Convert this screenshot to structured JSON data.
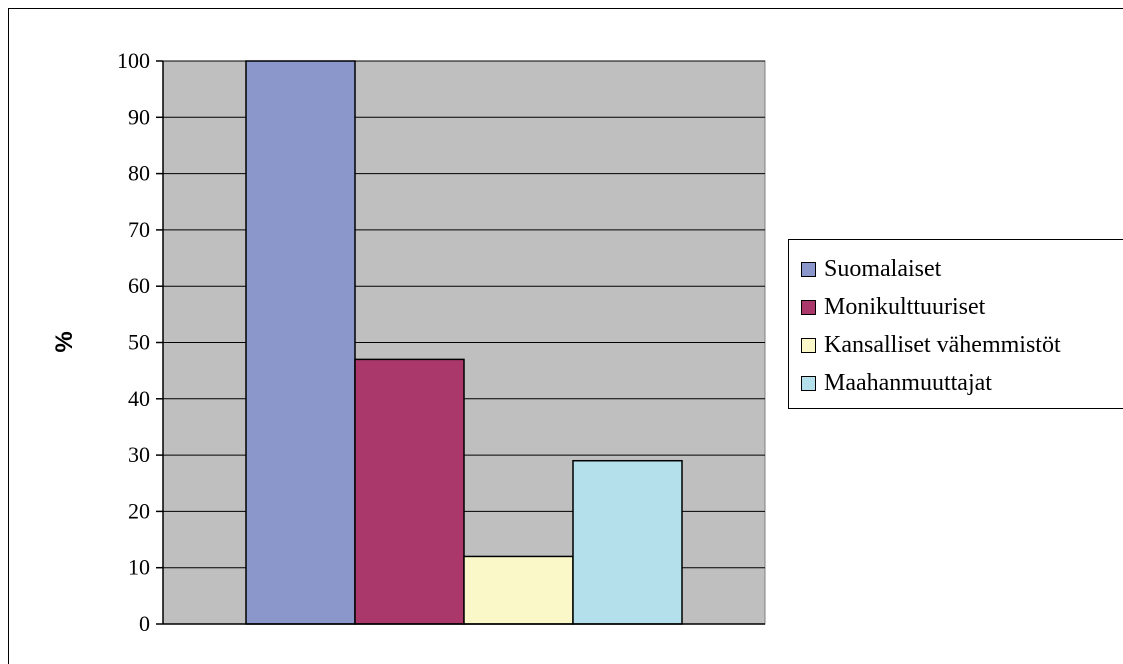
{
  "chart_data": {
    "type": "bar",
    "categories": [
      ""
    ],
    "series": [
      {
        "name": "Suomalaiset",
        "values": [
          100
        ],
        "color": "#8b96cb"
      },
      {
        "name": "Monikulttuuriset",
        "values": [
          47
        ],
        "color": "#ab386a"
      },
      {
        "name": "Kansalliset vähemmistöt",
        "values": [
          12
        ],
        "color": "#faf8c8"
      },
      {
        "name": "Maahanmuuttajat",
        "values": [
          29
        ],
        "color": "#b3e0ea"
      }
    ],
    "title": "",
    "xlabel": "",
    "ylabel": "%",
    "ylim": [
      0,
      100
    ],
    "yticks": [
      0,
      10,
      20,
      30,
      40,
      50,
      60,
      70,
      80,
      90,
      100
    ],
    "grid": true,
    "legend_position": "right",
    "plot_background": "#bfbfbf"
  }
}
